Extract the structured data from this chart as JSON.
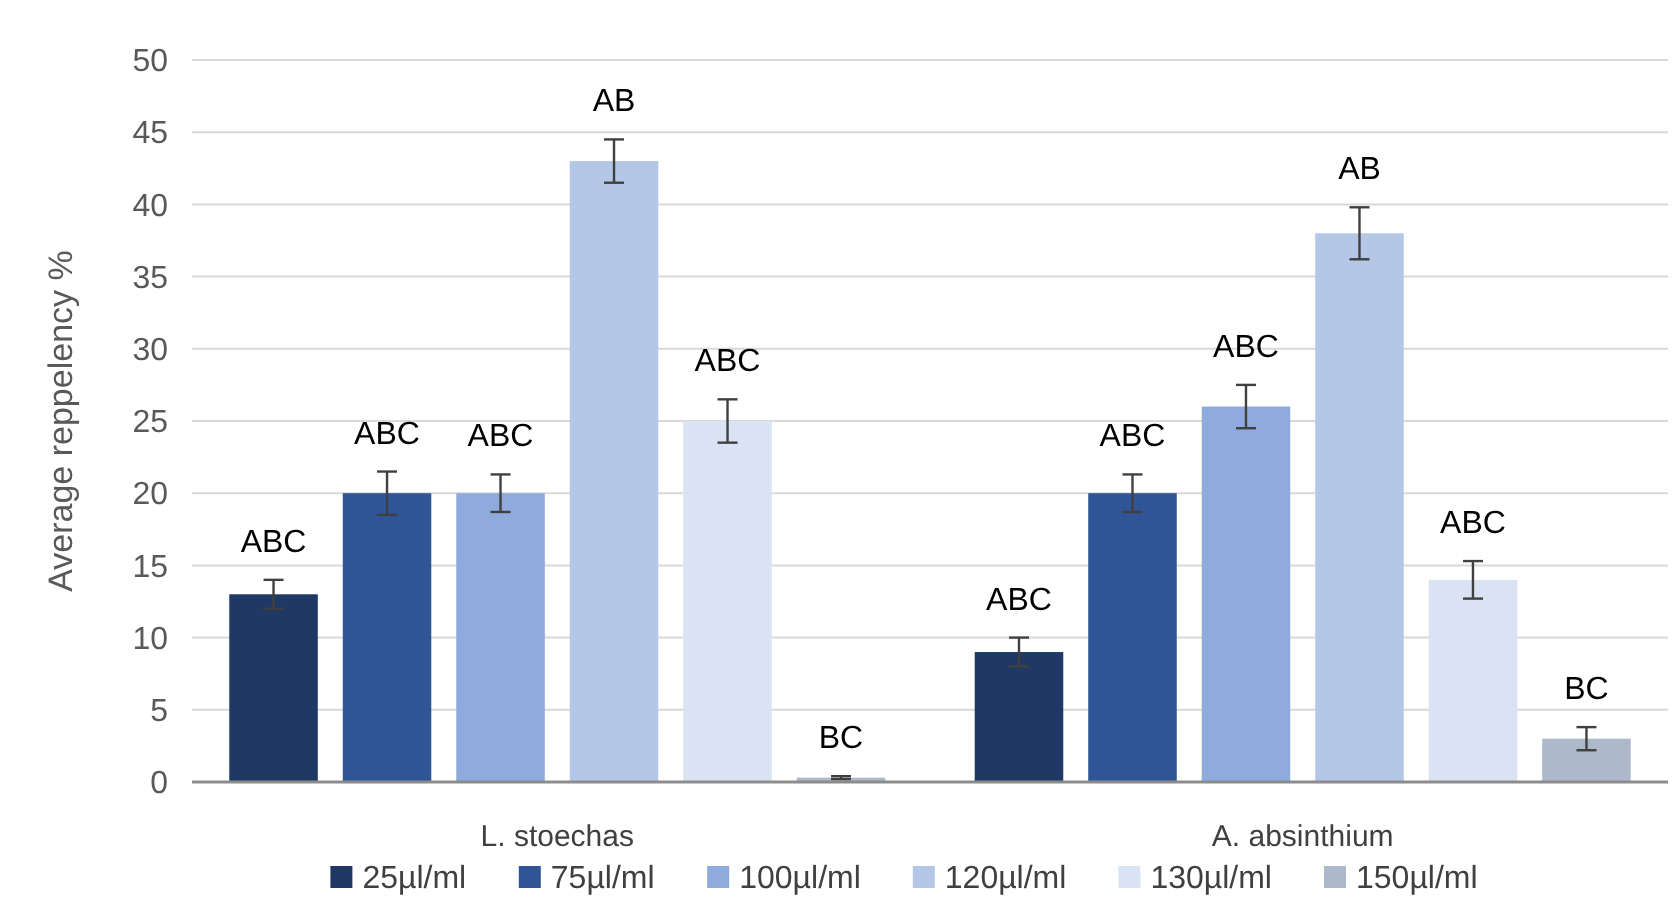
{
  "chart_data": {
    "type": "bar",
    "ylabel": "Average reppelency %",
    "categories": [
      "L. stoechas",
      "A. absinthium"
    ],
    "ylim": [
      0,
      50
    ],
    "yticks": [
      0,
      5,
      10,
      15,
      20,
      25,
      30,
      35,
      40,
      45,
      50
    ],
    "grid": "y",
    "legend": "bottom",
    "series": [
      {
        "name": "25µl/ml",
        "color": "#203864",
        "values": [
          13,
          9
        ],
        "errors": [
          1,
          1
        ],
        "value_labels": [
          "ABC",
          "ABC"
        ]
      },
      {
        "name": "75µl/ml",
        "color": "#2f5597",
        "values": [
          20,
          20
        ],
        "errors": [
          1.5,
          1.3
        ],
        "value_labels": [
          "ABC",
          "ABC"
        ]
      },
      {
        "name": "100µl/ml",
        "color": "#8faadc",
        "values": [
          20,
          26
        ],
        "errors": [
          1.3,
          1.5
        ],
        "value_labels": [
          "ABC",
          "ABC"
        ]
      },
      {
        "name": "120µl/ml",
        "color": "#b4c7e7",
        "values": [
          43,
          38
        ],
        "errors": [
          1.5,
          1.8
        ],
        "value_labels": [
          "AB",
          "AB"
        ]
      },
      {
        "name": "130µl/ml",
        "color": "#dae3f3",
        "values": [
          25,
          14
        ],
        "errors": [
          1.5,
          1.3
        ],
        "value_labels": [
          "ABC",
          "ABC"
        ]
      },
      {
        "name": "150µl/ml",
        "color": "#adb9ca",
        "values": [
          0.3,
          3
        ],
        "errors": [
          0.1,
          0.8
        ],
        "value_labels": [
          "BC",
          "BC"
        ]
      }
    ]
  }
}
